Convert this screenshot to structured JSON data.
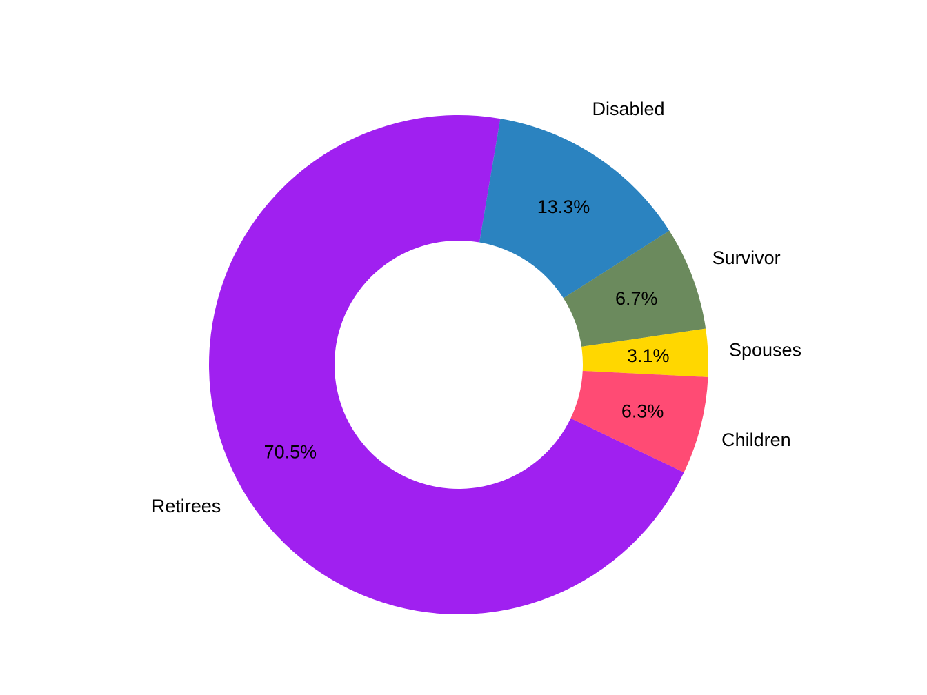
{
  "chart_data": {
    "type": "pie",
    "donut": true,
    "title": "",
    "legend": "none",
    "slices": [
      {
        "label": "Retirees",
        "value": 70.5,
        "value_label": "70.5%",
        "color": "#A020F0"
      },
      {
        "label": "Disabled",
        "value": 13.3,
        "value_label": "13.3%",
        "color": "#2B83C0"
      },
      {
        "label": "Survivor",
        "value": 6.7,
        "value_label": "6.7%",
        "color": "#6B8A5D"
      },
      {
        "label": "Spouses",
        "value": 3.1,
        "value_label": "3.1%",
        "color": "#FFD700"
      },
      {
        "label": "Children",
        "value": 6.3,
        "value_label": "6.3%",
        "color": "#FF4B74"
      }
    ]
  }
}
